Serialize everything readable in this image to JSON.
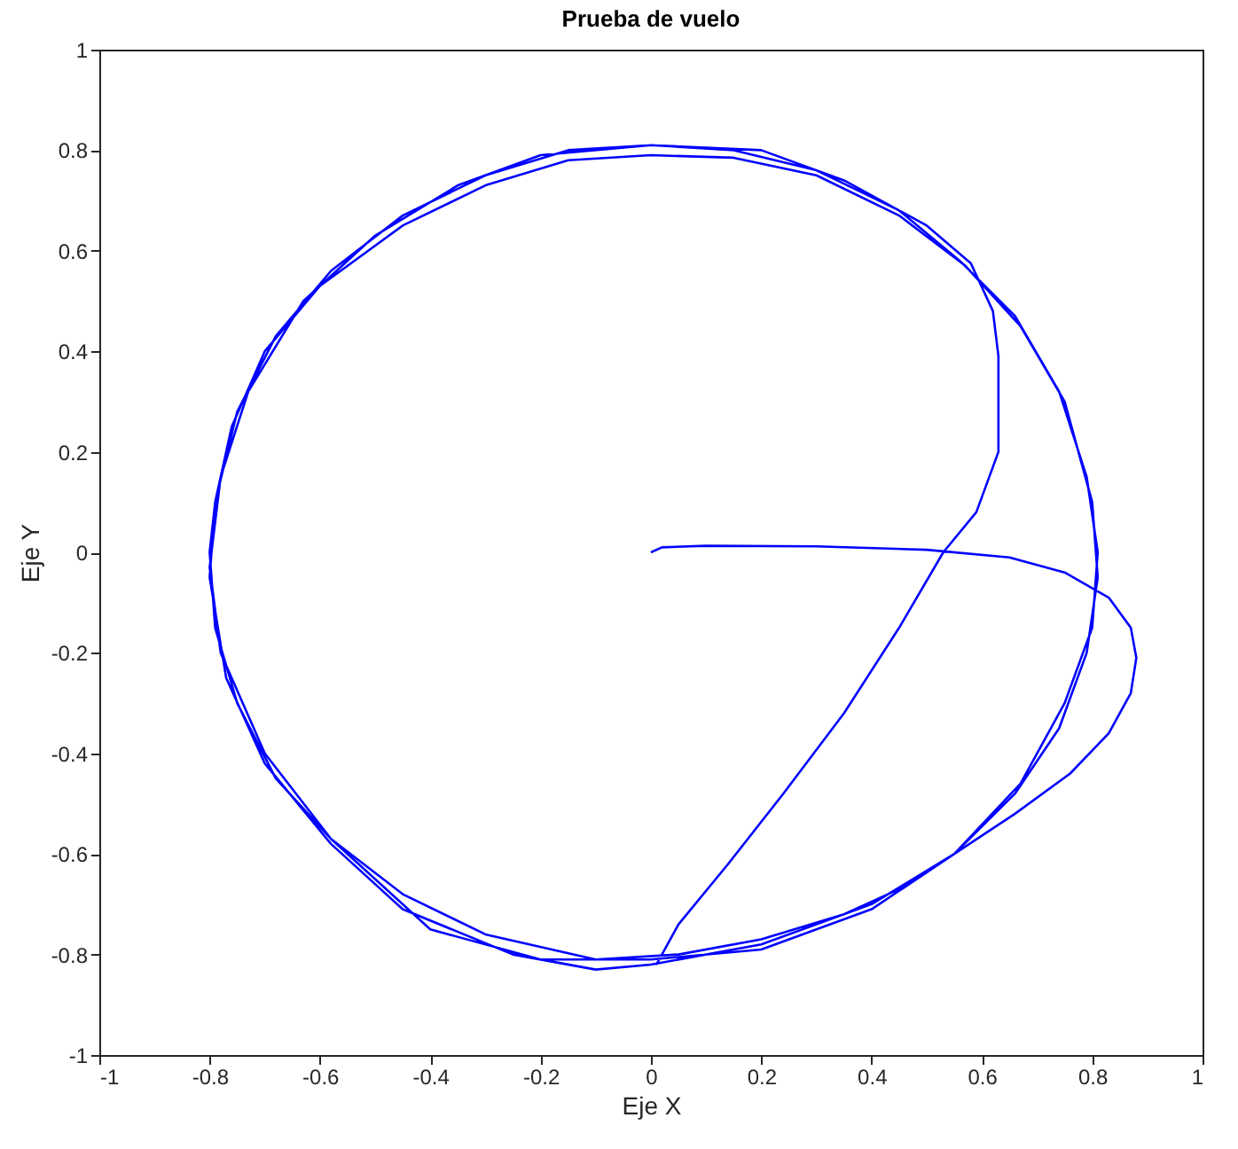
{
  "chart_data": {
    "type": "line",
    "title": "Prueba de vuelo",
    "xlabel": "Eje X",
    "ylabel": "Eje Y",
    "xlim": [
      -1,
      1
    ],
    "ylim": [
      -1,
      1
    ],
    "xticks": [
      -1,
      -0.8,
      -0.6,
      -0.4,
      -0.2,
      0,
      0.2,
      0.4,
      0.6,
      0.8,
      1
    ],
    "yticks": [
      -1,
      -0.8,
      -0.6,
      -0.4,
      -0.2,
      0,
      0.2,
      0.4,
      0.6,
      0.8,
      1
    ],
    "grid": false,
    "marker": "none",
    "line_style": "solid",
    "series": [
      {
        "color": "#0000ff",
        "x": [
          0,
          0.02,
          0.1,
          0.3,
          0.5,
          0.65,
          0.75,
          0.83,
          0.87,
          0.88,
          0.87,
          0.83,
          0.76,
          0.66,
          0.55,
          0.45,
          0.35,
          0.2,
          0.05,
          -0.1,
          -0.3,
          -0.45,
          -0.58,
          -0.68,
          -0.75,
          -0.79,
          -0.8,
          -0.79,
          -0.76,
          -0.7,
          -0.6,
          -0.45,
          -0.3,
          -0.15,
          0,
          0.15,
          0.3,
          0.45,
          0.57,
          0.67,
          0.75,
          0.8,
          0.81,
          0.79,
          0.74,
          0.66,
          0.55,
          0.4,
          0.2,
          0,
          -0.1,
          -0.25,
          -0.45,
          -0.58,
          -0.7,
          -0.77,
          -0.8,
          -0.79,
          -0.75,
          -0.68,
          -0.58,
          -0.45,
          -0.3,
          -0.15,
          0,
          0.15,
          0.3,
          0.45,
          0.56,
          0.66,
          0.74,
          0.79,
          0.81,
          0.8,
          0.75,
          0.67,
          0.55,
          0.4,
          0.2,
          0,
          -0.2,
          -0.4,
          -0.58,
          -0.7,
          -0.78,
          -0.8,
          -0.78,
          -0.73,
          -0.63,
          -0.5,
          -0.35,
          -0.2,
          0,
          0.2,
          0.35,
          0.5,
          0.58,
          0.62,
          0.63,
          0.63,
          0.59,
          0.53,
          0.45,
          0.35,
          0.24,
          0.14,
          0.05,
          0.02,
          0.01
        ],
        "values": [
          0,
          0.01,
          0.013,
          0.012,
          0.005,
          -0.01,
          -0.04,
          -0.09,
          -0.15,
          -0.21,
          -0.28,
          -0.36,
          -0.44,
          -0.52,
          -0.6,
          -0.67,
          -0.72,
          -0.77,
          -0.8,
          -0.81,
          -0.76,
          -0.68,
          -0.57,
          -0.45,
          -0.3,
          -0.15,
          0,
          0.1,
          0.25,
          0.4,
          0.53,
          0.65,
          0.73,
          0.78,
          0.79,
          0.785,
          0.75,
          0.67,
          0.57,
          0.45,
          0.3,
          0.1,
          -0.05,
          -0.2,
          -0.35,
          -0.48,
          -0.6,
          -0.7,
          -0.78,
          -0.82,
          -0.83,
          -0.8,
          -0.71,
          -0.58,
          -0.42,
          -0.25,
          -0.05,
          0.1,
          0.28,
          0.43,
          0.56,
          0.67,
          0.75,
          0.8,
          0.81,
          0.8,
          0.76,
          0.68,
          0.58,
          0.47,
          0.32,
          0.15,
          0,
          -0.15,
          -0.3,
          -0.46,
          -0.6,
          -0.71,
          -0.79,
          -0.81,
          -0.81,
          -0.75,
          -0.57,
          -0.4,
          -0.2,
          -0.03,
          0.15,
          0.32,
          0.5,
          0.63,
          0.73,
          0.79,
          0.81,
          0.8,
          0.74,
          0.65,
          0.575,
          0.48,
          0.39,
          0.2,
          0.08,
          0,
          -0.15,
          -0.32,
          -0.48,
          -0.62,
          -0.74,
          -0.8,
          -0.82
        ]
      }
    ]
  }
}
